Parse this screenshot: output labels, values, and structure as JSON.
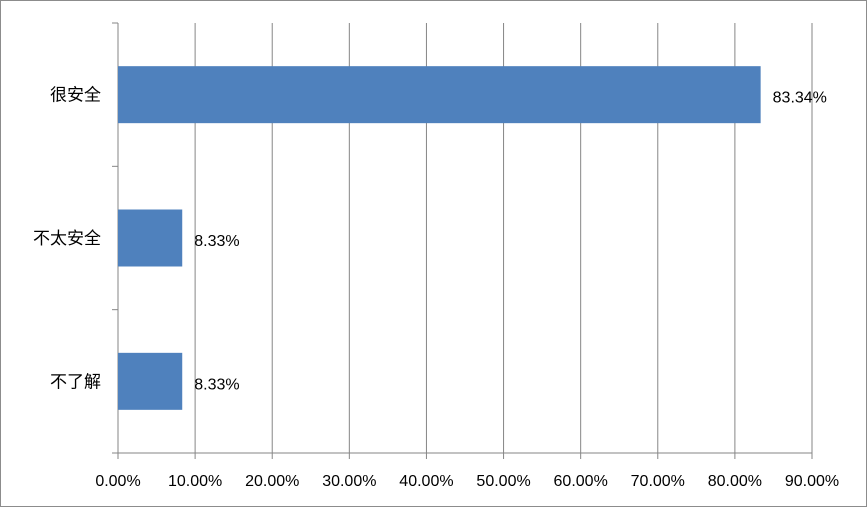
{
  "chart_data": {
    "type": "bar",
    "orientation": "horizontal",
    "categories": [
      "很安全",
      "不太安全",
      "不了解"
    ],
    "values": [
      83.34,
      8.33,
      8.33
    ],
    "data_labels": [
      "83.34%",
      "8.33%",
      "8.33%"
    ],
    "xlim": [
      0,
      90
    ],
    "x_ticks": [
      "0.00%",
      "10.00%",
      "20.00%",
      "30.00%",
      "40.00%",
      "50.00%",
      "60.00%",
      "70.00%",
      "80.00%",
      "90.00%"
    ],
    "grid": "vertical",
    "legend": "none",
    "bar_color": "#4f81bd",
    "gridline_color": "#868686"
  }
}
